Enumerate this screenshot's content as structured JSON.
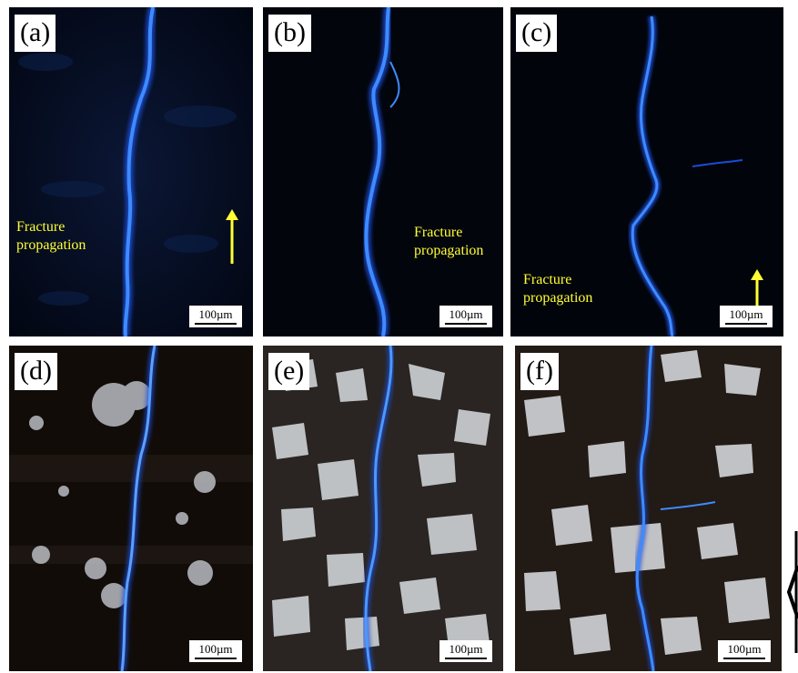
{
  "panels": [
    {
      "label": "(a)",
      "scale": "100µm",
      "annotation": "Fracture\npropagation"
    },
    {
      "label": "(b)",
      "scale": "100µm",
      "annotation": "Fracture\npropagation"
    },
    {
      "label": "(c)",
      "scale": "100µm",
      "annotation": "Fracture\npropagation"
    },
    {
      "label": "(d)",
      "scale": "100µm"
    },
    {
      "label": "(e)",
      "scale": "100µm"
    },
    {
      "label": "(f)",
      "scale": "100µm"
    }
  ],
  "colors": {
    "fracture": "#3d8bff",
    "fracture_glow": "#1a4dd6",
    "annotation": "#ffff33",
    "dark_matrix": "#050814",
    "grain": "#d6d9dd"
  }
}
